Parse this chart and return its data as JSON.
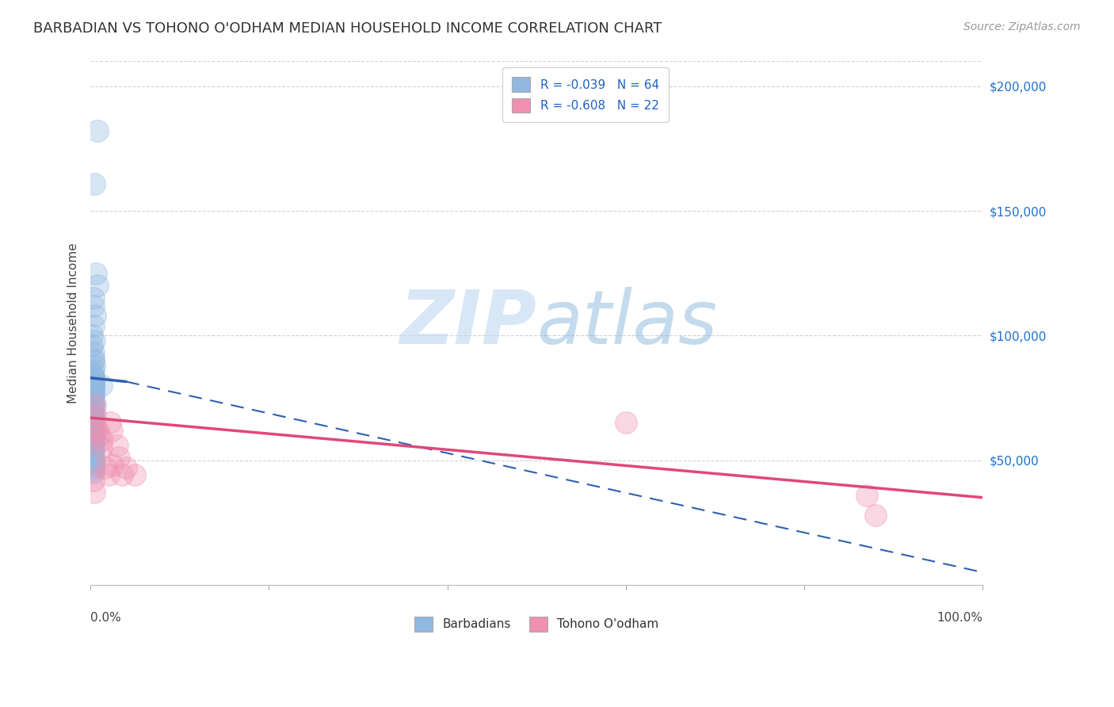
{
  "title": "BARBADIAN VS TOHONO O'ODHAM MEDIAN HOUSEHOLD INCOME CORRELATION CHART",
  "source": "Source: ZipAtlas.com",
  "ylabel": "Median Household Income",
  "yticks": [
    0,
    50000,
    100000,
    150000,
    200000
  ],
  "ytick_labels": [
    "",
    "$50,000",
    "$100,000",
    "$150,000",
    "$200,000"
  ],
  "xmin": 0.0,
  "xmax": 1.0,
  "ymin": 0,
  "ymax": 210000,
  "legend_entries": [
    {
      "label": "R = -0.039   N = 64",
      "color": "#a8c8e8"
    },
    {
      "label": "R = -0.608   N = 22",
      "color": "#f5a8c0"
    }
  ],
  "bottom_legend": [
    {
      "label": "Barbadians",
      "color": "#a8c8e8"
    },
    {
      "label": "Tohono O'odham",
      "color": "#f5a8c0"
    }
  ],
  "blue_scatter": {
    "x": [
      0.008,
      0.004,
      0.006,
      0.008,
      0.003,
      0.003,
      0.005,
      0.003,
      0.002,
      0.004,
      0.002,
      0.003,
      0.003,
      0.003,
      0.004,
      0.003,
      0.002,
      0.003,
      0.003,
      0.003,
      0.002,
      0.003,
      0.003,
      0.003,
      0.003,
      0.002,
      0.003,
      0.003,
      0.002,
      0.003,
      0.003,
      0.003,
      0.002,
      0.003,
      0.003,
      0.003,
      0.003,
      0.003,
      0.002,
      0.003,
      0.003,
      0.002,
      0.003,
      0.003,
      0.003,
      0.002,
      0.003,
      0.003,
      0.004,
      0.004,
      0.003,
      0.003,
      0.003,
      0.003,
      0.003,
      0.002,
      0.003,
      0.004,
      0.003,
      0.003,
      0.003,
      0.003,
      0.003,
      0.012
    ],
    "y": [
      182000,
      161000,
      125000,
      120000,
      115000,
      112000,
      108000,
      104000,
      100000,
      98000,
      96000,
      93000,
      91000,
      90000,
      88000,
      86000,
      85000,
      84000,
      83000,
      82500,
      82000,
      81000,
      80500,
      80000,
      79500,
      79000,
      78500,
      78000,
      77500,
      77000,
      76500,
      76000,
      75000,
      74000,
      73000,
      72000,
      71000,
      70000,
      69000,
      68000,
      67000,
      66000,
      65000,
      64000,
      63000,
      62000,
      61000,
      60000,
      59000,
      58000,
      57000,
      56000,
      55000,
      54000,
      53000,
      52000,
      51000,
      50000,
      49000,
      48000,
      47000,
      46000,
      45000,
      80000
    ]
  },
  "pink_scatter": {
    "x": [
      0.003,
      0.004,
      0.005,
      0.006,
      0.008,
      0.01,
      0.013,
      0.017,
      0.02,
      0.022,
      0.024,
      0.03,
      0.032,
      0.035,
      0.04,
      0.05,
      0.005,
      0.012,
      0.025,
      0.6,
      0.87,
      0.88
    ],
    "y": [
      42000,
      37000,
      68000,
      63000,
      62000,
      60000,
      58000,
      47000,
      44000,
      65000,
      62000,
      56000,
      51000,
      44000,
      47000,
      44000,
      72000,
      55000,
      48000,
      65000,
      36000,
      28000
    ]
  },
  "blue_solid_line": {
    "x": [
      0.0,
      0.04
    ],
    "y": [
      83000,
      81500
    ]
  },
  "blue_dashed_line": {
    "x": [
      0.04,
      1.0
    ],
    "y": [
      81500,
      5000
    ]
  },
  "pink_solid_line": {
    "x": [
      0.0,
      1.0
    ],
    "y": [
      67000,
      35000
    ]
  },
  "watermark_zip": "ZIP",
  "watermark_atlas": "atlas",
  "dot_size": 400,
  "dot_alpha": 0.35,
  "blue_color": "#90b8e0",
  "pink_color": "#f090b0",
  "blue_line_color": "#3060b0",
  "pink_line_color": "#e04878",
  "grid_color": "#c8c8c8",
  "background_color": "#ffffff",
  "title_fontsize": 13,
  "axis_label_fontsize": 11,
  "tick_fontsize": 11,
  "source_fontsize": 10
}
